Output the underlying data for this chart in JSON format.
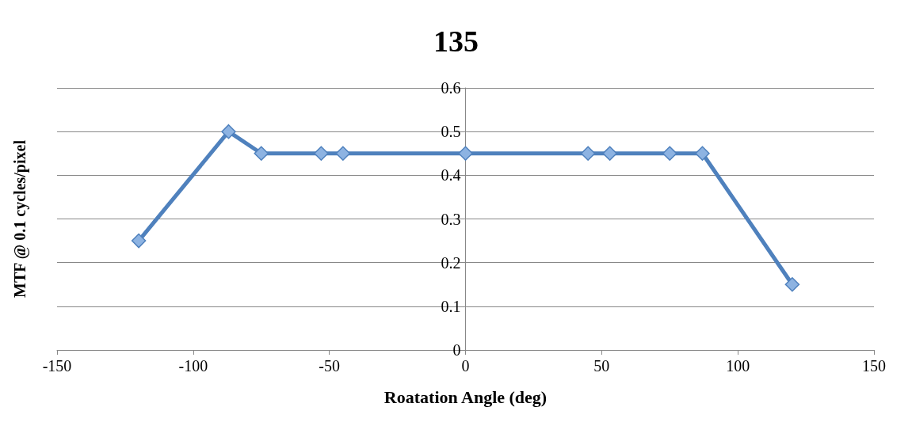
{
  "chart_data": {
    "type": "line",
    "title": "135",
    "xlabel": "Roatation Angle (deg)",
    "ylabel": "MTF @ 0.1 cycles/pixel",
    "x": [
      -120,
      -87,
      -75,
      -53,
      -45,
      0,
      45,
      53,
      75,
      87,
      120
    ],
    "series": [
      {
        "color": "#4f81bd",
        "values": [
          0.25,
          0.5,
          0.45,
          0.45,
          0.45,
          0.45,
          0.45,
          0.45,
          0.45,
          0.45,
          0.15
        ]
      }
    ],
    "xlim": [
      -150,
      150
    ],
    "xticks": [
      -150,
      -100,
      -50,
      0,
      50,
      100,
      150
    ],
    "ylim": [
      0,
      0.6
    ],
    "yticks": [
      0,
      0.1,
      0.2,
      0.3,
      0.4,
      0.5,
      0.6
    ],
    "grid": "y",
    "marker": "diamond",
    "line_style": "solid"
  }
}
